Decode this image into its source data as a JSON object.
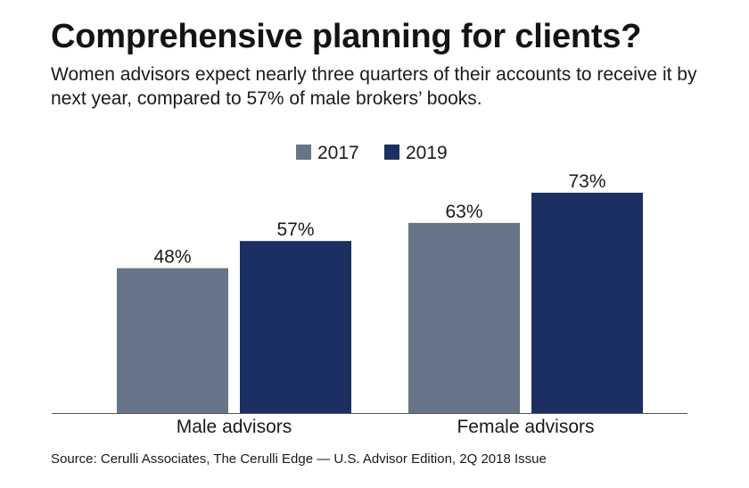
{
  "header": {
    "title": "Comprehensive planning for clients?",
    "subtitle": "Women advisors expect nearly three quarters of their accounts to receive it by next year, compared to 57% of male brokers’ books."
  },
  "footer": {
    "source": "Source: Cerulli Associates, The Cerulli Edge — U.S. Advisor Edition, 2Q 2018 Issue"
  },
  "chart_data": {
    "type": "bar",
    "title": "Comprehensive planning for clients?",
    "categories": [
      "Male advisors",
      "Female advisors"
    ],
    "series": [
      {
        "name": "2017",
        "values": [
          48,
          63
        ],
        "labels": [
          "48%",
          "63%"
        ],
        "color": "#667587"
      },
      {
        "name": "2019",
        "values": [
          57,
          73
        ],
        "labels": [
          "57%",
          "73%"
        ],
        "color": "#1b2f62"
      }
    ],
    "xlabel": "",
    "ylabel": "",
    "ylim": [
      0,
      100
    ],
    "grid": false,
    "legend": "top-center"
  }
}
